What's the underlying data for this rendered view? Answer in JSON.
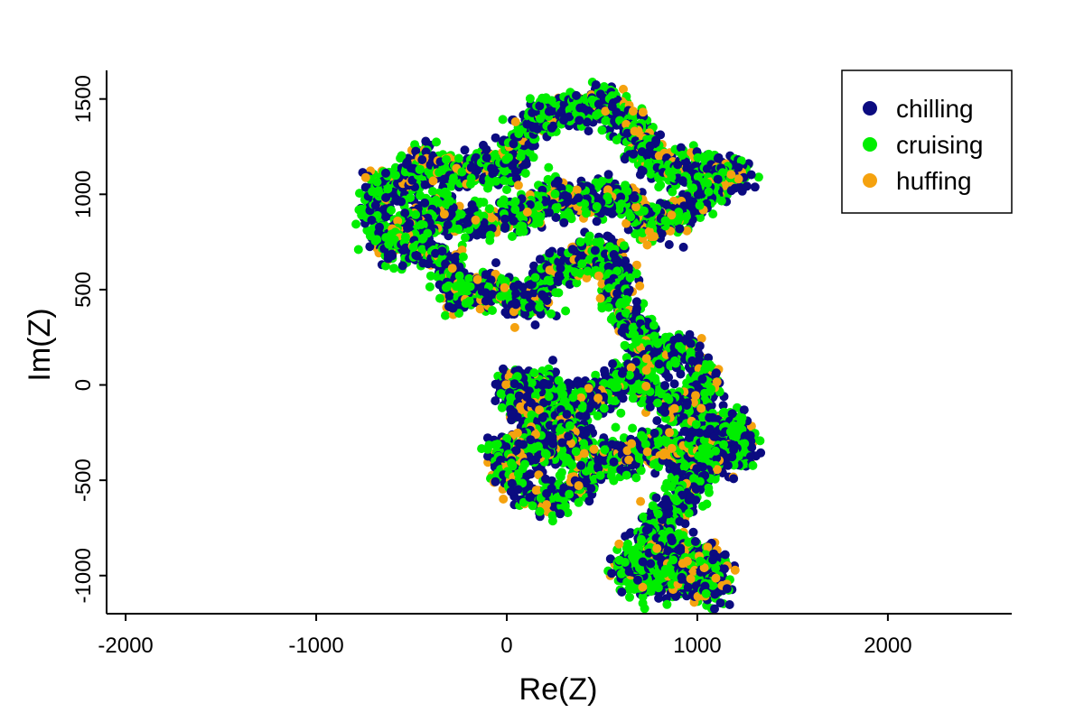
{
  "chart_data": {
    "type": "scatter",
    "title": "",
    "xlabel": "Re(Z)",
    "ylabel": "Im(Z)",
    "xlim": [
      -2100,
      2650
    ],
    "ylim": [
      -1200,
      1650
    ],
    "xticks": [
      -2000,
      -1000,
      0,
      1000,
      2000
    ],
    "yticks": [
      -1000,
      -500,
      0,
      500,
      1000,
      1500
    ],
    "xtick_labels": [
      "-2000",
      "-1000",
      "0",
      "1000",
      "2000"
    ],
    "ytick_labels": [
      "-1000",
      "-500",
      "0",
      "500",
      "1000",
      "1500"
    ],
    "grid": false,
    "legend_position": "top-right",
    "series": [
      {
        "name": "chilling",
        "color": "#0b0b80"
      },
      {
        "name": "cruising",
        "color": "#00ee00"
      },
      {
        "name": "huffing",
        "color": "#f5a20f"
      }
    ],
    "path_waypoints": [
      [
        -700,
        860
      ],
      [
        -650,
        1080
      ],
      [
        -560,
        1020
      ],
      [
        -450,
        1180
      ],
      [
        -300,
        1100
      ],
      [
        -150,
        1150
      ],
      [
        0,
        1120
      ],
      [
        100,
        1350
      ],
      [
        250,
        1450
      ],
      [
        350,
        1420
      ],
      [
        500,
        1500
      ],
      [
        650,
        1400
      ],
      [
        700,
        1250
      ],
      [
        850,
        1100
      ],
      [
        1050,
        1150
      ],
      [
        1200,
        1100
      ],
      [
        1050,
        1000
      ],
      [
        900,
        900
      ],
      [
        800,
        820
      ],
      [
        650,
        950
      ],
      [
        500,
        1000
      ],
      [
        400,
        950
      ],
      [
        250,
        1000
      ],
      [
        100,
        900
      ],
      [
        -100,
        850
      ],
      [
        -300,
        880
      ],
      [
        -400,
        950
      ],
      [
        -500,
        820
      ],
      [
        -650,
        750
      ],
      [
        -450,
        700
      ],
      [
        -300,
        640
      ],
      [
        -250,
        450
      ],
      [
        -100,
        520
      ],
      [
        0,
        460
      ],
      [
        150,
        420
      ],
      [
        200,
        560
      ],
      [
        300,
        620
      ],
      [
        450,
        700
      ],
      [
        600,
        640
      ],
      [
        550,
        500
      ],
      [
        650,
        380
      ],
      [
        700,
        250
      ],
      [
        750,
        150
      ],
      [
        900,
        200
      ],
      [
        1000,
        80
      ],
      [
        1050,
        -50
      ],
      [
        950,
        -150
      ],
      [
        850,
        -100
      ],
      [
        750,
        0
      ],
      [
        650,
        50
      ],
      [
        500,
        -50
      ],
      [
        350,
        -100
      ],
      [
        250,
        -50
      ],
      [
        150,
        0
      ],
      [
        0,
        0
      ],
      [
        100,
        -150
      ],
      [
        300,
        -200
      ],
      [
        400,
        -300
      ],
      [
        250,
        -350
      ],
      [
        100,
        -300
      ],
      [
        -50,
        -350
      ],
      [
        0,
        -450
      ],
      [
        100,
        -550
      ],
      [
        200,
        -600
      ],
      [
        350,
        -550
      ],
      [
        450,
        -450
      ],
      [
        550,
        -350
      ],
      [
        650,
        -400
      ],
      [
        800,
        -300
      ],
      [
        900,
        -400
      ],
      [
        1050,
        -250
      ],
      [
        1200,
        -200
      ],
      [
        1250,
        -350
      ],
      [
        1100,
        -400
      ],
      [
        950,
        -500
      ],
      [
        900,
        -650
      ],
      [
        800,
        -700
      ],
      [
        750,
        -850
      ],
      [
        950,
        -850
      ],
      [
        1100,
        -950
      ],
      [
        1000,
        -1050
      ],
      [
        850,
        -1000
      ],
      [
        700,
        -1050
      ],
      [
        600,
        -950
      ],
      [
        800,
        -900
      ],
      [
        1000,
        -1000
      ],
      [
        1100,
        -1100
      ]
    ]
  }
}
